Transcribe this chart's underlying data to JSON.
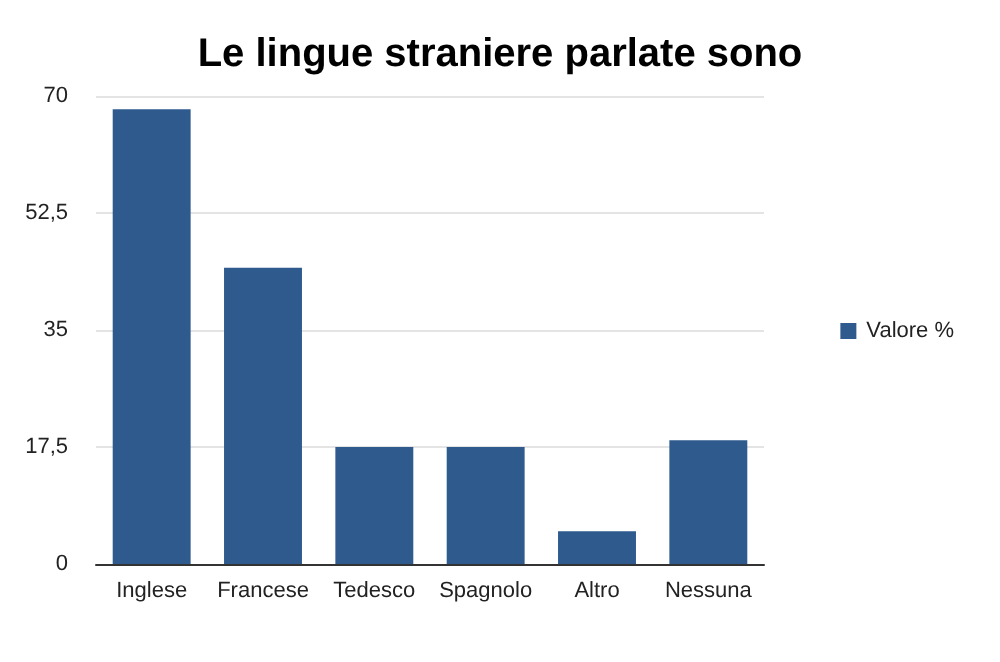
{
  "chart_data": {
    "type": "bar",
    "title": "Le lingue straniere parlate sono",
    "categories": [
      "Inglese",
      "Francese",
      "Tedesco",
      "Spagnolo",
      "Altro",
      "Nessuna"
    ],
    "series": [
      {
        "name": "Valore %",
        "color": "#2e5a8e",
        "values": [
          68,
          44.3,
          17.5,
          17.5,
          4.9,
          18.5
        ]
      }
    ],
    "ylim": [
      0,
      70
    ],
    "yticks": [
      0,
      {
        "value": 17.5,
        "label": "17,5"
      },
      35,
      {
        "value": 52.5,
        "label": "52,5"
      },
      70
    ],
    "grid": "y",
    "legend": "right"
  }
}
